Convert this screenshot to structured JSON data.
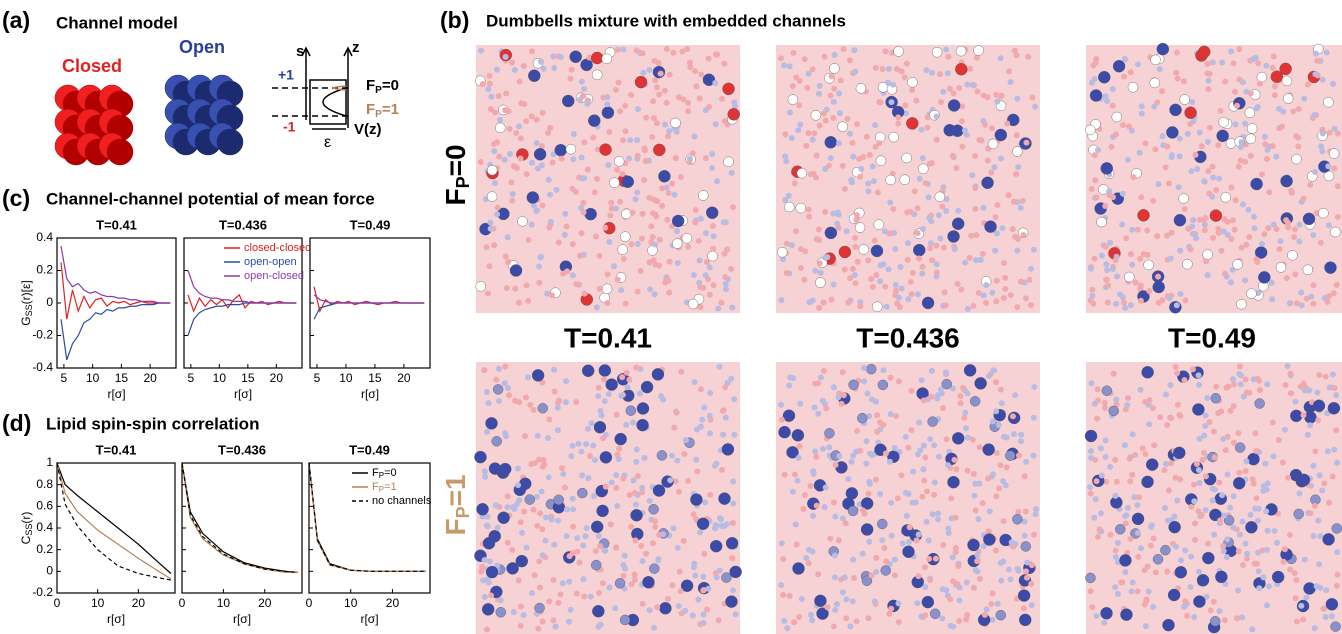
{
  "panel_a": {
    "label": "(a)",
    "title": "Channel model",
    "closed": "Closed",
    "open": "Open",
    "axis_s": "s",
    "axis_z": "z",
    "plus_one": "+1",
    "minus_one": "-1",
    "epsilon": "ε",
    "potential": "V(z)",
    "fp0": {
      "main": "F",
      "sub": "P",
      "rest": "=0"
    },
    "fp1": {
      "main": "F",
      "sub": "P",
      "rest": "=1"
    }
  },
  "panel_b": {
    "label": "(b)",
    "title": "Dumbbells mixture with embedded channels",
    "temperatures": [
      "T=0.41",
      "T=0.436",
      "T=0.49"
    ],
    "row_fp0": {
      "main": "F",
      "sub": "P",
      "rest": "=0"
    },
    "row_fp1": {
      "main": "F",
      "sub": "P",
      "rest": "=1"
    }
  },
  "panel_c": {
    "label": "(c)",
    "title": "Channel-channel potential of mean force"
  },
  "panel_d": {
    "label": "(d)",
    "title": "Lipid spin-spin correlation"
  },
  "chart_data": [
    {
      "type": "line",
      "title": "T=0.41",
      "ylabel": {
        "main": "G",
        "sub": "SS",
        "rest": "(r)[ε]"
      },
      "xlabel": "r[σ]",
      "xlim": [
        3.8,
        24.5
      ],
      "ylim": [
        -0.4,
        0.4
      ],
      "xticks": [
        5,
        10,
        15,
        20
      ],
      "yticks": [
        -0.4,
        -0.2,
        0,
        0.2,
        0.4
      ],
      "x": [
        4.5,
        5.5,
        6.5,
        7.5,
        8.5,
        9.5,
        10.5,
        11.5,
        12.5,
        13.5,
        14.5,
        15.5,
        16.5,
        17.5,
        18.5,
        19.5,
        20.5,
        21.5,
        22.5,
        23.5
      ],
      "series": [
        {
          "color": "#e02020",
          "values": [
            0.25,
            -0.1,
            0.08,
            -0.05,
            0.04,
            -0.03,
            0.02,
            0.03,
            -0.02,
            0.01,
            0,
            0.01,
            -0.01,
            0,
            0.01,
            0,
            0,
            0,
            0,
            0
          ]
        },
        {
          "color": "#2a4ea0",
          "values": [
            -0.1,
            -0.35,
            -0.25,
            -0.2,
            -0.12,
            -0.1,
            -0.06,
            -0.07,
            -0.04,
            -0.05,
            -0.03,
            -0.03,
            -0.02,
            -0.02,
            -0.01,
            -0.01,
            -0.01,
            0,
            0,
            0
          ]
        },
        {
          "color": "#8a3aa8",
          "values": [
            0.35,
            0.15,
            0.1,
            0.12,
            0.08,
            0.06,
            0.07,
            0.05,
            0.04,
            0.04,
            0.03,
            0.03,
            0.02,
            0.02,
            0.01,
            0.01,
            0.01,
            0,
            0,
            0
          ]
        }
      ]
    },
    {
      "type": "line",
      "title": "T=0.436",
      "xlabel": "r[σ]",
      "xlim": [
        3.8,
        24.5
      ],
      "ylim": [
        -0.4,
        0.4
      ],
      "xticks": [
        5,
        10,
        15,
        20
      ],
      "yticks": [
        -0.4,
        -0.2,
        0,
        0.2,
        0.4
      ],
      "legend": "upper right",
      "x": [
        4.5,
        5.5,
        6.5,
        7.5,
        8.5,
        9.5,
        10.5,
        11.5,
        12.5,
        13.5,
        14.5,
        15.5,
        16.5,
        17.5,
        18.5,
        19.5,
        20.5,
        21.5,
        22.5,
        23.5
      ],
      "series": [
        {
          "name": "closed-closed",
          "color": "#e02020",
          "values": [
            0.05,
            -0.05,
            0.03,
            -0.02,
            0.02,
            -0.01,
            0.02,
            -0.03,
            0.02,
            0.05,
            -0.03,
            0.01,
            0,
            0.01,
            -0.01,
            0,
            0.01,
            0,
            0,
            0
          ]
        },
        {
          "name": "open-open",
          "color": "#2a4ea0",
          "values": [
            -0.2,
            -0.1,
            -0.06,
            -0.04,
            -0.03,
            -0.02,
            -0.02,
            -0.01,
            -0.01,
            -0.01,
            0,
            0,
            0,
            0,
            0,
            0,
            0,
            0,
            0,
            0
          ]
        },
        {
          "name": "open-closed",
          "color": "#8a3aa8",
          "values": [
            0.2,
            0.1,
            0.06,
            0.04,
            0.03,
            0.03,
            0.02,
            0.02,
            0.01,
            0.01,
            0.01,
            0,
            0,
            0,
            0,
            0,
            0,
            0,
            0,
            0
          ]
        }
      ]
    },
    {
      "type": "line",
      "title": "T=0.49",
      "xlabel": "r[σ]",
      "xlim": [
        3.8,
        24.5
      ],
      "ylim": [
        -0.4,
        0.4
      ],
      "xticks": [
        5,
        10,
        15,
        20
      ],
      "yticks": [
        -0.4,
        -0.2,
        0,
        0.2,
        0.4
      ],
      "x": [
        4.5,
        5.5,
        6.5,
        7.5,
        8.5,
        9.5,
        10.5,
        11.5,
        12.5,
        13.5,
        14.5,
        15.5,
        16.5,
        17.5,
        18.5,
        19.5,
        20.5,
        21.5,
        22.5,
        23.5
      ],
      "series": [
        {
          "color": "#e02020",
          "values": [
            0.1,
            -0.05,
            0.02,
            -0.01,
            0.01,
            0,
            0.01,
            -0.01,
            0,
            0.01,
            0,
            -0.01,
            0,
            0,
            0.01,
            0,
            0,
            0,
            0,
            0
          ]
        },
        {
          "color": "#2a4ea0",
          "values": [
            -0.1,
            -0.03,
            -0.02,
            -0.01,
            0,
            0,
            0,
            0,
            0,
            0,
            0,
            0,
            0,
            0,
            0,
            0,
            0,
            0,
            0,
            0
          ]
        },
        {
          "color": "#8a3aa8",
          "values": [
            0.05,
            0.02,
            0.01,
            0,
            0,
            0,
            0,
            0,
            0,
            0,
            0,
            0,
            0,
            0,
            0,
            0,
            0,
            0,
            0,
            0
          ]
        }
      ]
    },
    {
      "type": "line",
      "title": "T=0.41",
      "ylabel": {
        "main": "C",
        "sub": "SS",
        "rest": "(r)"
      },
      "xlabel": "r[σ]",
      "xlim": [
        0,
        29
      ],
      "ylim": [
        -0.2,
        1
      ],
      "xticks": [
        0,
        10,
        20
      ],
      "yticks": [
        -0.2,
        0,
        0.2,
        0.4,
        0.6,
        0.8,
        1
      ],
      "x": [
        0,
        2,
        5,
        10,
        15,
        20,
        25,
        28
      ],
      "series": [
        {
          "color": "#000000",
          "values": [
            1,
            0.8,
            0.7,
            0.55,
            0.4,
            0.25,
            0.08,
            -0.02
          ]
        },
        {
          "color": "#b5835a",
          "values": [
            1,
            0.72,
            0.55,
            0.38,
            0.25,
            0.12,
            0,
            -0.07
          ]
        },
        {
          "color": "#000000",
          "style": "dashed",
          "values": [
            1,
            0.62,
            0.42,
            0.2,
            0.05,
            -0.02,
            -0.06,
            -0.08
          ]
        }
      ]
    },
    {
      "type": "line",
      "title": "T=0.436",
      "xlabel": "r[σ]",
      "xlim": [
        0,
        29
      ],
      "ylim": [
        -0.2,
        1
      ],
      "xticks": [
        0,
        10,
        20
      ],
      "yticks": [
        -0.2,
        0,
        0.2,
        0.4,
        0.6,
        0.8,
        1
      ],
      "x": [
        0,
        2,
        5,
        10,
        15,
        20,
        25,
        28
      ],
      "series": [
        {
          "color": "#000000",
          "values": [
            1,
            0.55,
            0.35,
            0.18,
            0.08,
            0.03,
            0,
            -0.01
          ]
        },
        {
          "color": "#b5835a",
          "values": [
            1,
            0.5,
            0.3,
            0.15,
            0.07,
            0.02,
            -0.01,
            -0.01
          ]
        },
        {
          "color": "#000000",
          "style": "dashed",
          "values": [
            1,
            0.52,
            0.32,
            0.16,
            0.07,
            0.02,
            0,
            -0.01
          ]
        }
      ]
    },
    {
      "type": "line",
      "title": "T=0.49",
      "xlabel": "r[σ]",
      "xlim": [
        0,
        29
      ],
      "ylim": [
        -0.2,
        1
      ],
      "xticks": [
        0,
        10,
        20
      ],
      "yticks": [
        -0.2,
        0,
        0.2,
        0.4,
        0.6,
        0.8,
        1
      ],
      "legend": "upper right",
      "x": [
        0,
        2,
        5,
        10,
        15,
        20,
        25,
        28
      ],
      "series": [
        {
          "name": {
            "main": "F",
            "sub": "P",
            "rest": "=0"
          },
          "color": "#000000",
          "values": [
            1,
            0.3,
            0.07,
            0.01,
            0,
            0,
            0,
            0
          ]
        },
        {
          "name": {
            "main": "F",
            "sub": "P",
            "rest": "=1"
          },
          "color": "#b5835a",
          "values": [
            1,
            0.28,
            0.06,
            0.01,
            0,
            0,
            0,
            0
          ]
        },
        {
          "name": "no channels",
          "color": "#000000",
          "style": "dashed",
          "values": [
            1,
            0.29,
            0.06,
            0.01,
            0,
            0,
            0,
            0
          ]
        }
      ]
    }
  ]
}
